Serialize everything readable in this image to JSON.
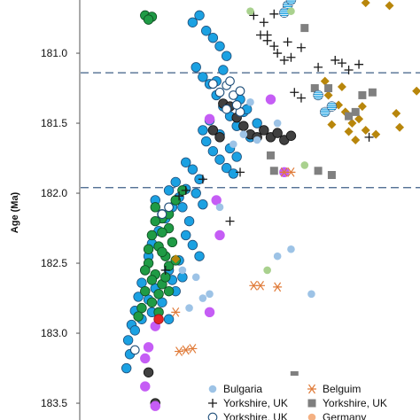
{
  "chart_data": {
    "type": "scatter",
    "ylabel": "Age (Ma)",
    "y_reversed": true,
    "ylim": [
      180.62,
      183.62
    ],
    "yticks": [
      "181.0",
      "181.5",
      "182.0",
      "182.5",
      "183.0",
      "183.5"
    ],
    "ytick_values": [
      181.0,
      181.5,
      182.0,
      182.5,
      183.0,
      183.5
    ],
    "xlim": [
      0,
      1
    ],
    "x_axis_visible": false,
    "grid": false,
    "reference_lines": [
      {
        "y": 181.14,
        "style": "dashed",
        "color": "#3f5f86"
      },
      {
        "y": 181.96,
        "style": "dashed",
        "color": "#3f5f86"
      }
    ],
    "legend_placement": "bottom-right",
    "legend": [
      {
        "label": "Bulgaria",
        "marker": "small-circle",
        "color": "#9dc3e6"
      },
      {
        "label": "Belguim",
        "marker": "asterisk",
        "color": "#e07b39"
      },
      {
        "label": "Yorkshire, UK",
        "marker": "plus",
        "color": "#1a1a1a"
      },
      {
        "label": "Yorkshire, UK",
        "marker": "square",
        "color": "#7f7f7f"
      },
      {
        "label": "Yorkshire, UK",
        "marker": "circle-outline",
        "color": "#1f4e79"
      },
      {
        "label": "Germany",
        "marker": "small-circle",
        "color": "#f4b183"
      }
    ],
    "series": [
      {
        "marker": "circle",
        "color": "#1ba1e2",
        "stroke": "#1f4e79",
        "points": [
          [
            0.33,
            180.78
          ],
          [
            0.35,
            180.73
          ],
          [
            0.37,
            180.84
          ],
          [
            0.39,
            180.89
          ],
          [
            0.41,
            180.95
          ],
          [
            0.43,
            181.02
          ],
          [
            0.34,
            181.1
          ],
          [
            0.36,
            181.17
          ],
          [
            0.38,
            181.22
          ],
          [
            0.4,
            181.3
          ],
          [
            0.42,
            181.38
          ],
          [
            0.44,
            181.45
          ],
          [
            0.46,
            181.52
          ],
          [
            0.48,
            181.42
          ],
          [
            0.37,
            181.63
          ],
          [
            0.39,
            181.7
          ],
          [
            0.41,
            181.76
          ],
          [
            0.43,
            181.82
          ],
          [
            0.45,
            181.86
          ],
          [
            0.33,
            181.83
          ],
          [
            0.35,
            181.9
          ],
          [
            0.31,
            181.97
          ],
          [
            0.29,
            182.03
          ],
          [
            0.27,
            182.1
          ],
          [
            0.25,
            182.18
          ],
          [
            0.23,
            182.27
          ],
          [
            0.21,
            182.36
          ],
          [
            0.2,
            182.45
          ],
          [
            0.19,
            182.55
          ],
          [
            0.18,
            182.64
          ],
          [
            0.17,
            182.74
          ],
          [
            0.16,
            182.84
          ],
          [
            0.15,
            182.94
          ],
          [
            0.14,
            183.05
          ],
          [
            0.145,
            183.15
          ],
          [
            0.135,
            183.25
          ],
          [
            0.31,
            182.3
          ],
          [
            0.33,
            182.37
          ],
          [
            0.35,
            182.45
          ],
          [
            0.3,
            182.6
          ],
          [
            0.28,
            182.7
          ],
          [
            0.26,
            182.55
          ],
          [
            0.24,
            182.15
          ],
          [
            0.22,
            182.05
          ],
          [
            0.3,
            182.1
          ],
          [
            0.32,
            182.2
          ],
          [
            0.29,
            182.48
          ],
          [
            0.27,
            182.62
          ],
          [
            0.26,
            182.9
          ],
          [
            0.24,
            182.78
          ],
          [
            0.21,
            182.85
          ],
          [
            0.36,
            181.55
          ],
          [
            0.38,
            181.48
          ],
          [
            0.31,
            181.78
          ],
          [
            0.47,
            181.33
          ],
          [
            0.49,
            181.4
          ],
          [
            0.5,
            181.6
          ],
          [
            0.52,
            181.5
          ],
          [
            0.18,
            182.9
          ],
          [
            0.16,
            182.98
          ],
          [
            0.2,
            182.76
          ],
          [
            0.22,
            182.68
          ],
          [
            0.34,
            182.0
          ],
          [
            0.36,
            182.08
          ],
          [
            0.28,
            181.92
          ],
          [
            0.26,
            181.98
          ],
          [
            0.4,
            181.2
          ],
          [
            0.42,
            181.12
          ],
          [
            0.44,
            181.68
          ],
          [
            0.46,
            181.74
          ],
          [
            0.41,
            181.58
          ]
        ]
      },
      {
        "marker": "circle",
        "color": "#1f9b45",
        "stroke": "#0f4d22",
        "points": [
          [
            0.19,
            180.73
          ],
          [
            0.21,
            180.74
          ],
          [
            0.2,
            180.76
          ],
          [
            0.22,
            182.1
          ],
          [
            0.24,
            182.18
          ],
          [
            0.26,
            182.25
          ],
          [
            0.21,
            182.3
          ],
          [
            0.23,
            182.38
          ],
          [
            0.25,
            182.45
          ],
          [
            0.2,
            182.5
          ],
          [
            0.22,
            182.58
          ],
          [
            0.24,
            182.65
          ],
          [
            0.19,
            182.7
          ],
          [
            0.21,
            182.78
          ],
          [
            0.23,
            182.85
          ],
          [
            0.18,
            182.82
          ],
          [
            0.26,
            182.52
          ],
          [
            0.27,
            182.35
          ],
          [
            0.24,
            182.28
          ],
          [
            0.22,
            182.2
          ],
          [
            0.2,
            182.4
          ],
          [
            0.25,
            182.6
          ],
          [
            0.23,
            182.72
          ],
          [
            0.17,
            182.88
          ],
          [
            0.26,
            182.15
          ],
          [
            0.28,
            182.05
          ],
          [
            0.3,
            181.98
          ],
          [
            0.28,
            182.48
          ],
          [
            0.21,
            182.62
          ],
          [
            0.19,
            182.55
          ],
          [
            0.26,
            182.7
          ],
          [
            0.24,
            182.42
          ]
        ]
      },
      {
        "marker": "circle",
        "color": "#404040",
        "stroke": "#111111",
        "points": [
          [
            0.42,
            181.36
          ],
          [
            0.44,
            181.38
          ],
          [
            0.46,
            181.46
          ],
          [
            0.48,
            181.52
          ],
          [
            0.5,
            181.58
          ],
          [
            0.52,
            181.6
          ],
          [
            0.54,
            181.55
          ],
          [
            0.56,
            181.6
          ],
          [
            0.58,
            181.57
          ],
          [
            0.6,
            181.62
          ],
          [
            0.39,
            181.55
          ],
          [
            0.41,
            181.6
          ],
          [
            0.62,
            181.59
          ],
          [
            0.2,
            183.28
          ],
          [
            0.22,
            183.5
          ]
        ]
      },
      {
        "marker": "circle",
        "color": "#c55df5",
        "stroke": "#c55df5",
        "points": [
          [
            0.56,
            181.33
          ],
          [
            0.38,
            181.47
          ],
          [
            0.6,
            181.85
          ],
          [
            0.4,
            182.05
          ],
          [
            0.22,
            182.95
          ],
          [
            0.2,
            183.1
          ],
          [
            0.19,
            183.18
          ],
          [
            0.38,
            182.85
          ],
          [
            0.41,
            182.3
          ],
          [
            0.19,
            183.38
          ],
          [
            0.22,
            183.52
          ]
        ]
      },
      {
        "marker": "circle-outline",
        "color": "#ffffff",
        "stroke": "#1f4e79",
        "points": [
          [
            0.39,
            181.22
          ],
          [
            0.41,
            181.28
          ],
          [
            0.43,
            181.23
          ],
          [
            0.45,
            181.3
          ],
          [
            0.47,
            181.27
          ],
          [
            0.43,
            181.4
          ],
          [
            0.47,
            181.42
          ],
          [
            0.46,
            181.37
          ],
          [
            0.44,
            181.2
          ],
          [
            0.24,
            182.15
          ],
          [
            0.26,
            182.1
          ],
          [
            0.16,
            183.12
          ]
        ]
      },
      {
        "marker": "plus",
        "color": "#1a1a1a",
        "stroke": "#1a1a1a",
        "points": [
          [
            0.51,
            180.73
          ],
          [
            0.53,
            180.87
          ],
          [
            0.55,
            180.91
          ],
          [
            0.57,
            180.72
          ],
          [
            0.54,
            180.78
          ],
          [
            0.58,
            181.0
          ],
          [
            0.6,
            181.05
          ],
          [
            0.62,
            181.03
          ],
          [
            0.65,
            180.96
          ],
          [
            0.61,
            180.92
          ],
          [
            0.75,
            181.05
          ],
          [
            0.77,
            181.07
          ],
          [
            0.79,
            181.12
          ],
          [
            0.82,
            181.08
          ],
          [
            0.85,
            181.6
          ],
          [
            0.63,
            181.28
          ],
          [
            0.65,
            181.32
          ],
          [
            0.29,
            182.02
          ],
          [
            0.31,
            181.98
          ],
          [
            0.36,
            181.9
          ],
          [
            0.47,
            181.85
          ],
          [
            0.25,
            182.55
          ],
          [
            0.44,
            182.2
          ],
          [
            0.57,
            180.95
          ],
          [
            0.55,
            180.87
          ],
          [
            0.7,
            181.1
          ]
        ]
      },
      {
        "marker": "diamond",
        "color": "#b8860b",
        "stroke": "#b8860b",
        "points": [
          [
            0.73,
            181.3
          ],
          [
            0.76,
            181.37
          ],
          [
            0.78,
            181.42
          ],
          [
            0.8,
            181.5
          ],
          [
            0.82,
            181.47
          ],
          [
            0.79,
            181.56
          ],
          [
            0.81,
            181.62
          ],
          [
            0.84,
            181.55
          ],
          [
            0.87,
            181.58
          ],
          [
            0.93,
            181.43
          ],
          [
            0.94,
            181.53
          ],
          [
            0.99,
            181.27
          ],
          [
            0.77,
            181.24
          ],
          [
            0.72,
            181.2
          ],
          [
            0.28,
            182.47
          ],
          [
            0.84,
            180.64
          ],
          [
            0.91,
            180.66
          ],
          [
            0.74,
            181.51
          ],
          [
            0.83,
            181.38
          ]
        ]
      },
      {
        "marker": "square",
        "color": "#808080",
        "stroke": "#808080",
        "points": [
          [
            0.69,
            181.25
          ],
          [
            0.73,
            181.25
          ],
          [
            0.81,
            181.42
          ],
          [
            0.83,
            181.3
          ],
          [
            0.79,
            181.45
          ],
          [
            0.86,
            181.28
          ],
          [
            0.7,
            181.84
          ],
          [
            0.74,
            181.87
          ],
          [
            0.56,
            181.73
          ],
          [
            0.57,
            181.84
          ],
          [
            0.66,
            180.82
          ],
          [
            0.63,
            183.3
          ]
        ]
      },
      {
        "marker": "circle-striped",
        "color": "#1ba1e2",
        "stroke": "#1f4e79",
        "points": [
          [
            0.61,
            180.66
          ],
          [
            0.6,
            180.71
          ],
          [
            0.62,
            180.62
          ],
          [
            0.7,
            181.3
          ],
          [
            0.72,
            181.42
          ],
          [
            0.74,
            181.38
          ]
        ]
      },
      {
        "marker": "small-circle",
        "color": "#9dc3e6",
        "stroke": "#9dc3e6",
        "points": [
          [
            0.48,
            181.58
          ],
          [
            0.52,
            181.62
          ],
          [
            0.5,
            181.35
          ],
          [
            0.3,
            182.55
          ],
          [
            0.62,
            182.4
          ],
          [
            0.34,
            182.6
          ],
          [
            0.36,
            182.75
          ],
          [
            0.38,
            182.72
          ],
          [
            0.58,
            182.45
          ],
          [
            0.68,
            182.72
          ],
          [
            0.41,
            182.1
          ],
          [
            0.45,
            181.65
          ],
          [
            0.58,
            181.5
          ],
          [
            0.32,
            182.82
          ]
        ]
      },
      {
        "marker": "small-circle",
        "color": "#a9d18e",
        "stroke": "#a9d18e",
        "points": [
          [
            0.5,
            180.7
          ],
          [
            0.62,
            180.7
          ],
          [
            0.55,
            182.55
          ],
          [
            0.66,
            181.8
          ]
        ]
      },
      {
        "marker": "asterisk",
        "color": "#e07b39",
        "stroke": "#e07b39",
        "points": [
          [
            0.29,
            183.13
          ],
          [
            0.31,
            183.12
          ],
          [
            0.33,
            183.11
          ],
          [
            0.51,
            182.66
          ],
          [
            0.53,
            182.66
          ],
          [
            0.58,
            182.67
          ],
          [
            0.62,
            181.85
          ],
          [
            0.6,
            181.85
          ],
          [
            0.28,
            182.85
          ]
        ]
      },
      {
        "marker": "circle",
        "color": "#e32626",
        "stroke": "#a01010",
        "points": [
          [
            0.23,
            182.9
          ]
        ]
      }
    ]
  }
}
